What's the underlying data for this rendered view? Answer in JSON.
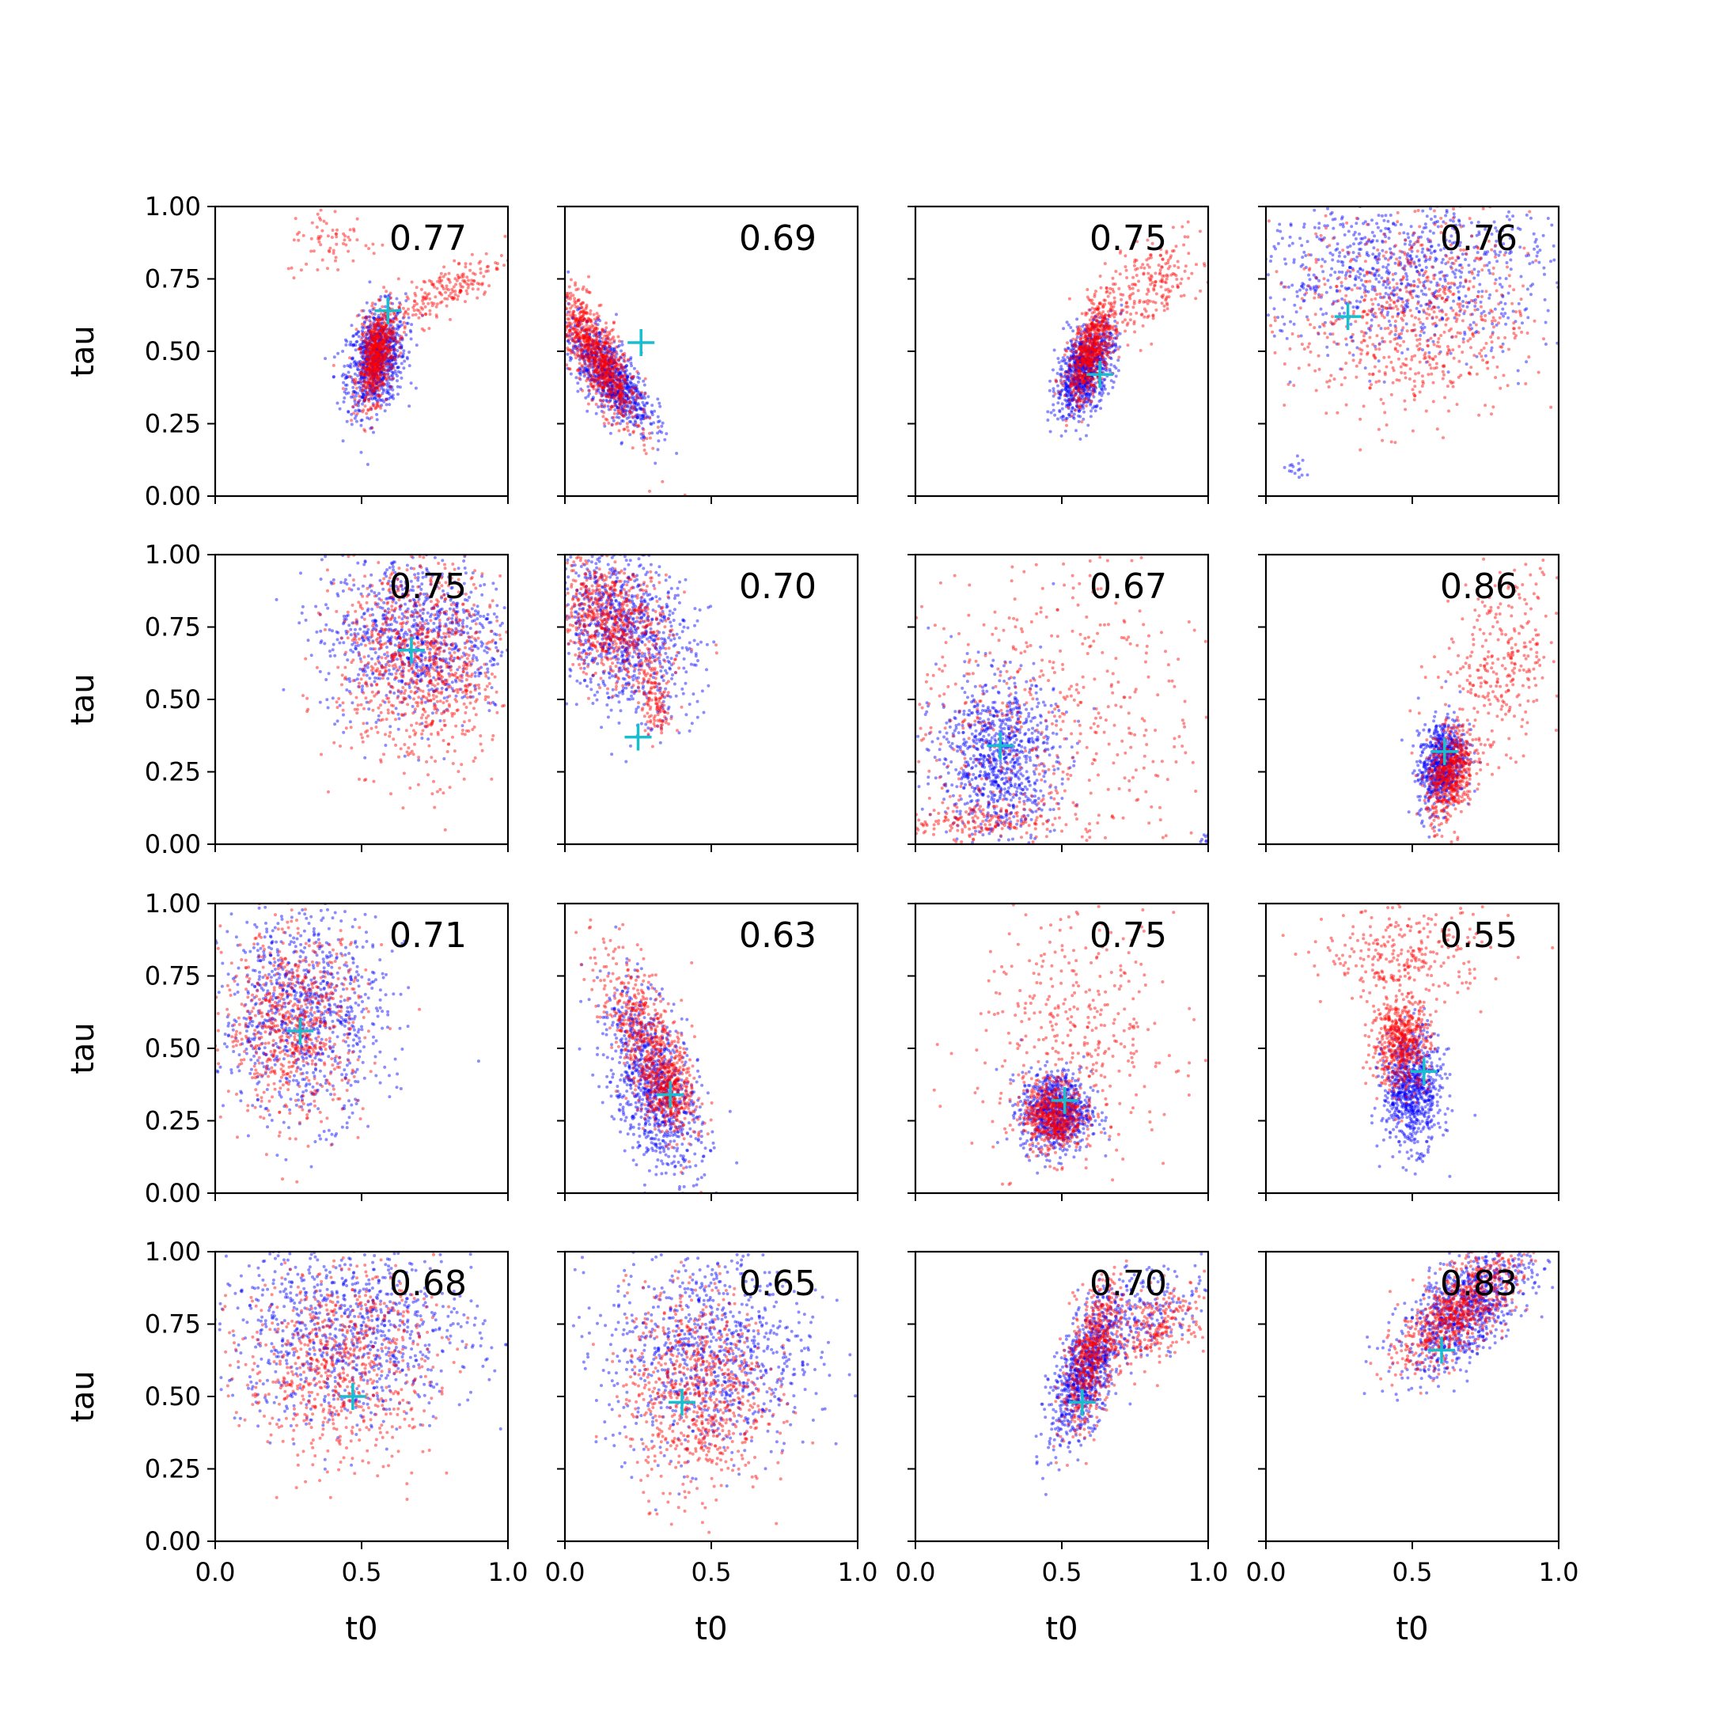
{
  "figure": {
    "xlabel": "t0",
    "ylabel": "tau",
    "x_ticks": [
      "0.0",
      "0.5",
      "1.0"
    ],
    "y_ticks": [
      "0.00",
      "0.25",
      "0.50",
      "0.75",
      "1.00"
    ],
    "colors": {
      "series_a": "#0000ff",
      "series_b": "#ff0000",
      "marker": "#17becf",
      "axes": "#000000"
    }
  },
  "chart_data": [
    {
      "type": "scatter",
      "row": 0,
      "col": 0,
      "score": "0.77",
      "xlim": [
        0,
        1
      ],
      "ylim": [
        0,
        1
      ],
      "true_point": {
        "x": 0.59,
        "y": 0.64
      },
      "series": [
        {
          "color": "blue",
          "clusters": [
            {
              "cx": 0.55,
              "cy": 0.47,
              "sx": 0.05,
              "sy": 0.09,
              "rho": 0.3,
              "n": 900
            }
          ]
        },
        {
          "color": "red",
          "clusters": [
            {
              "cx": 0.55,
              "cy": 0.48,
              "sx": 0.03,
              "sy": 0.08,
              "rho": 0.4,
              "n": 650
            },
            {
              "cx": 0.77,
              "cy": 0.7,
              "sx": 0.11,
              "sy": 0.07,
              "rho": 0.8,
              "n": 220
            },
            {
              "cx": 0.4,
              "cy": 0.88,
              "sx": 0.08,
              "sy": 0.06,
              "rho": 0,
              "n": 70
            }
          ]
        }
      ]
    },
    {
      "type": "scatter",
      "row": 0,
      "col": 1,
      "score": "0.69",
      "xlim": [
        0,
        1
      ],
      "ylim": [
        0,
        1
      ],
      "true_point": {
        "x": 0.26,
        "y": 0.53
      },
      "series": [
        {
          "color": "blue",
          "clusters": [
            {
              "cx": 0.15,
              "cy": 0.42,
              "sx": 0.07,
              "sy": 0.09,
              "rho": -0.7,
              "n": 850
            }
          ]
        },
        {
          "color": "red",
          "clusters": [
            {
              "cx": 0.11,
              "cy": 0.48,
              "sx": 0.07,
              "sy": 0.12,
              "rho": -0.8,
              "n": 900
            }
          ]
        }
      ]
    },
    {
      "type": "scatter",
      "row": 0,
      "col": 2,
      "score": "0.75",
      "xlim": [
        0,
        1
      ],
      "ylim": [
        0,
        1
      ],
      "true_point": {
        "x": 0.63,
        "y": 0.42
      },
      "series": [
        {
          "color": "blue",
          "clusters": [
            {
              "cx": 0.58,
              "cy": 0.44,
              "sx": 0.05,
              "sy": 0.08,
              "rho": 0.5,
              "n": 900
            }
          ]
        },
        {
          "color": "red",
          "clusters": [
            {
              "cx": 0.6,
              "cy": 0.5,
              "sx": 0.04,
              "sy": 0.09,
              "rho": 0.6,
              "n": 650
            },
            {
              "cx": 0.8,
              "cy": 0.72,
              "sx": 0.09,
              "sy": 0.08,
              "rho": 0.5,
              "n": 220
            }
          ]
        }
      ]
    },
    {
      "type": "scatter",
      "row": 0,
      "col": 3,
      "score": "0.76",
      "xlim": [
        0,
        1
      ],
      "ylim": [
        0,
        1
      ],
      "true_point": {
        "x": 0.28,
        "y": 0.62
      },
      "series": [
        {
          "color": "blue",
          "clusters": [
            {
              "cx": 0.45,
              "cy": 0.78,
              "sx": 0.28,
              "sy": 0.14,
              "rho": 0,
              "n": 900
            },
            {
              "cx": 0.11,
              "cy": 0.1,
              "sx": 0.02,
              "sy": 0.02,
              "rho": 0,
              "n": 15
            }
          ]
        },
        {
          "color": "red",
          "clusters": [
            {
              "cx": 0.5,
              "cy": 0.62,
              "sx": 0.2,
              "sy": 0.18,
              "rho": 0,
              "n": 700
            }
          ]
        }
      ]
    },
    {
      "type": "scatter",
      "row": 1,
      "col": 0,
      "score": "0.75",
      "xlim": [
        0,
        1
      ],
      "ylim": [
        0,
        1
      ],
      "true_point": {
        "x": 0.67,
        "y": 0.67
      },
      "series": [
        {
          "color": "blue",
          "clusters": [
            {
              "cx": 0.68,
              "cy": 0.72,
              "sx": 0.16,
              "sy": 0.14,
              "rho": 0,
              "n": 900
            }
          ]
        },
        {
          "color": "red",
          "clusters": [
            {
              "cx": 0.7,
              "cy": 0.62,
              "sx": 0.14,
              "sy": 0.18,
              "rho": -0.1,
              "n": 900
            }
          ]
        }
      ]
    },
    {
      "type": "scatter",
      "row": 1,
      "col": 1,
      "score": "0.70",
      "xlim": [
        0,
        1
      ],
      "ylim": [
        0,
        1
      ],
      "true_point": {
        "x": 0.25,
        "y": 0.37
      },
      "series": [
        {
          "color": "blue",
          "clusters": [
            {
              "cx": 0.2,
              "cy": 0.74,
              "sx": 0.12,
              "sy": 0.14,
              "rho": -0.3,
              "n": 900
            }
          ]
        },
        {
          "color": "red",
          "clusters": [
            {
              "cx": 0.16,
              "cy": 0.77,
              "sx": 0.1,
              "sy": 0.11,
              "rho": -0.3,
              "n": 700
            },
            {
              "cx": 0.31,
              "cy": 0.48,
              "sx": 0.03,
              "sy": 0.06,
              "rho": -0.5,
              "n": 120
            }
          ]
        }
      ]
    },
    {
      "type": "scatter",
      "row": 1,
      "col": 2,
      "score": "0.67",
      "xlim": [
        0,
        1
      ],
      "ylim": [
        0,
        1
      ],
      "true_point": {
        "x": 0.29,
        "y": 0.34
      },
      "series": [
        {
          "color": "blue",
          "clusters": [
            {
              "cx": 0.28,
              "cy": 0.3,
              "sx": 0.1,
              "sy": 0.14,
              "rho": 0,
              "n": 900
            },
            {
              "cx": 0.99,
              "cy": 0.02,
              "sx": 0.01,
              "sy": 0.01,
              "rho": 0,
              "n": 10
            }
          ]
        },
        {
          "color": "red",
          "clusters": [
            {
              "cx": 0.4,
              "cy": 0.4,
              "sx": 0.28,
              "sy": 0.28,
              "rho": 0,
              "n": 600
            },
            {
              "cx": 0.2,
              "cy": 0.08,
              "sx": 0.12,
              "sy": 0.03,
              "rho": 0,
              "n": 150
            }
          ]
        }
      ]
    },
    {
      "type": "scatter",
      "row": 1,
      "col": 3,
      "score": "0.86",
      "xlim": [
        0,
        1
      ],
      "ylim": [
        0,
        1
      ],
      "true_point": {
        "x": 0.61,
        "y": 0.32
      },
      "series": [
        {
          "color": "blue",
          "clusters": [
            {
              "cx": 0.6,
              "cy": 0.28,
              "sx": 0.04,
              "sy": 0.08,
              "rho": 0.3,
              "n": 700
            }
          ]
        },
        {
          "color": "red",
          "clusters": [
            {
              "cx": 0.63,
              "cy": 0.24,
              "sx": 0.04,
              "sy": 0.08,
              "rho": 0.3,
              "n": 550
            },
            {
              "cx": 0.8,
              "cy": 0.62,
              "sx": 0.11,
              "sy": 0.16,
              "rho": 0.3,
              "n": 320
            }
          ]
        }
      ]
    },
    {
      "type": "scatter",
      "row": 2,
      "col": 0,
      "score": "0.71",
      "xlim": [
        0,
        1
      ],
      "ylim": [
        0,
        1
      ],
      "true_point": {
        "x": 0.29,
        "y": 0.56
      },
      "series": [
        {
          "color": "blue",
          "clusters": [
            {
              "cx": 0.3,
              "cy": 0.62,
              "sx": 0.14,
              "sy": 0.18,
              "rho": 0,
              "n": 900
            }
          ]
        },
        {
          "color": "red",
          "clusters": [
            {
              "cx": 0.27,
              "cy": 0.58,
              "sx": 0.12,
              "sy": 0.16,
              "rho": 0,
              "n": 700
            }
          ]
        }
      ]
    },
    {
      "type": "scatter",
      "row": 2,
      "col": 1,
      "score": "0.63",
      "xlim": [
        0,
        1
      ],
      "ylim": [
        0,
        1
      ],
      "true_point": {
        "x": 0.36,
        "y": 0.34
      },
      "series": [
        {
          "color": "blue",
          "clusters": [
            {
              "cx": 0.3,
              "cy": 0.38,
              "sx": 0.08,
              "sy": 0.16,
              "rho": -0.5,
              "n": 900
            }
          ]
        },
        {
          "color": "red",
          "clusters": [
            {
              "cx": 0.28,
              "cy": 0.52,
              "sx": 0.08,
              "sy": 0.16,
              "rho": -0.7,
              "n": 600
            },
            {
              "cx": 0.36,
              "cy": 0.36,
              "sx": 0.04,
              "sy": 0.06,
              "rho": 0,
              "n": 250
            }
          ]
        }
      ]
    },
    {
      "type": "scatter",
      "row": 2,
      "col": 2,
      "score": "0.75",
      "xlim": [
        0,
        1
      ],
      "ylim": [
        0,
        1
      ],
      "true_point": {
        "x": 0.51,
        "y": 0.32
      },
      "series": [
        {
          "color": "blue",
          "clusters": [
            {
              "cx": 0.48,
              "cy": 0.28,
              "sx": 0.06,
              "sy": 0.07,
              "rho": 0,
              "n": 800
            }
          ]
        },
        {
          "color": "red",
          "clusters": [
            {
              "cx": 0.47,
              "cy": 0.27,
              "sx": 0.05,
              "sy": 0.06,
              "rho": 0,
              "n": 550
            },
            {
              "cx": 0.55,
              "cy": 0.55,
              "sx": 0.17,
              "sy": 0.22,
              "rho": 0,
              "n": 380
            }
          ]
        }
      ]
    },
    {
      "type": "scatter",
      "row": 2,
      "col": 3,
      "score": "0.55",
      "xlim": [
        0,
        1
      ],
      "ylim": [
        0,
        1
      ],
      "true_point": {
        "x": 0.54,
        "y": 0.42
      },
      "series": [
        {
          "color": "blue",
          "clusters": [
            {
              "cx": 0.5,
              "cy": 0.36,
              "sx": 0.05,
              "sy": 0.1,
              "rho": 0,
              "n": 800
            }
          ]
        },
        {
          "color": "red",
          "clusters": [
            {
              "cx": 0.46,
              "cy": 0.52,
              "sx": 0.05,
              "sy": 0.08,
              "rho": 0,
              "n": 550
            },
            {
              "cx": 0.48,
              "cy": 0.82,
              "sx": 0.14,
              "sy": 0.08,
              "rho": 0,
              "n": 280
            }
          ]
        }
      ]
    },
    {
      "type": "scatter",
      "row": 3,
      "col": 0,
      "score": "0.68",
      "xlim": [
        0,
        1
      ],
      "ylim": [
        0,
        1
      ],
      "true_point": {
        "x": 0.47,
        "y": 0.5
      },
      "series": [
        {
          "color": "blue",
          "clusters": [
            {
              "cx": 0.45,
              "cy": 0.72,
              "sx": 0.22,
              "sy": 0.16,
              "rho": 0,
              "n": 900
            }
          ]
        },
        {
          "color": "red",
          "clusters": [
            {
              "cx": 0.42,
              "cy": 0.62,
              "sx": 0.16,
              "sy": 0.17,
              "rho": 0,
              "n": 750
            }
          ]
        }
      ]
    },
    {
      "type": "scatter",
      "row": 3,
      "col": 1,
      "score": "0.65",
      "xlim": [
        0,
        1
      ],
      "ylim": [
        0,
        1
      ],
      "true_point": {
        "x": 0.4,
        "y": 0.48
      },
      "series": [
        {
          "color": "blue",
          "clusters": [
            {
              "cx": 0.5,
              "cy": 0.65,
              "sx": 0.18,
              "sy": 0.18,
              "rho": 0,
              "n": 900
            }
          ]
        },
        {
          "color": "red",
          "clusters": [
            {
              "cx": 0.45,
              "cy": 0.52,
              "sx": 0.12,
              "sy": 0.18,
              "rho": 0,
              "n": 750
            }
          ]
        }
      ]
    },
    {
      "type": "scatter",
      "row": 3,
      "col": 2,
      "score": "0.70",
      "xlim": [
        0,
        1
      ],
      "ylim": [
        0,
        1
      ],
      "true_point": {
        "x": 0.57,
        "y": 0.48
      },
      "series": [
        {
          "color": "blue",
          "clusters": [
            {
              "cx": 0.58,
              "cy": 0.58,
              "sx": 0.06,
              "sy": 0.12,
              "rho": 0.6,
              "n": 850
            },
            {
              "cx": 0.8,
              "cy": 0.8,
              "sx": 0.1,
              "sy": 0.08,
              "rho": 0.4,
              "n": 200
            }
          ]
        },
        {
          "color": "red",
          "clusters": [
            {
              "cx": 0.6,
              "cy": 0.64,
              "sx": 0.05,
              "sy": 0.13,
              "rho": 0.6,
              "n": 550
            },
            {
              "cx": 0.82,
              "cy": 0.74,
              "sx": 0.09,
              "sy": 0.07,
              "rho": 0.5,
              "n": 250
            }
          ]
        }
      ]
    },
    {
      "type": "scatter",
      "row": 3,
      "col": 3,
      "score": "0.83",
      "xlim": [
        0,
        1
      ],
      "ylim": [
        0,
        1
      ],
      "true_point": {
        "x": 0.6,
        "y": 0.66
      },
      "series": [
        {
          "color": "blue",
          "clusters": [
            {
              "cx": 0.68,
              "cy": 0.8,
              "sx": 0.11,
              "sy": 0.11,
              "rho": 0.6,
              "n": 900
            }
          ]
        },
        {
          "color": "red",
          "clusters": [
            {
              "cx": 0.66,
              "cy": 0.8,
              "sx": 0.1,
              "sy": 0.1,
              "rho": 0.7,
              "n": 750
            }
          ]
        }
      ]
    }
  ]
}
